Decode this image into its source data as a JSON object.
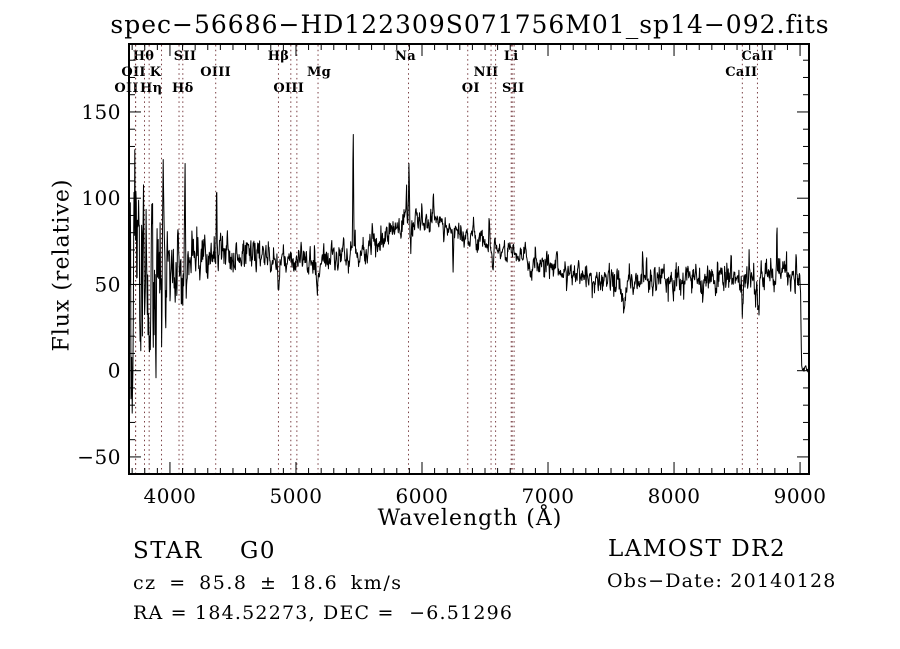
{
  "title": "spec−56686−HD122309S071756M01_sp14−092.fits",
  "annotations": {
    "class_label": "STAR",
    "subclass_label": "G0",
    "survey_label": "LAMOST DR2",
    "cz_label": "cz = 85.8 ± 18.6 km/s",
    "obsdate_label": "Obs−Date: 20140128",
    "radec_label": "RA = 184.52273, DEC =  −6.51296"
  },
  "chart_data": {
    "type": "line",
    "title": "spec−56686−HD122309S071756M01_sp14−092.fits",
    "xlabel": "Wavelength (Å)",
    "ylabel": "Flux (relative)",
    "xlim": [
      3675,
      9071
    ],
    "ylim": [
      -59.9,
      189.4
    ],
    "xticks": [
      4000,
      5000,
      6000,
      7000,
      8000,
      9000
    ],
    "yticks": [
      -50,
      0,
      50,
      100,
      150
    ],
    "x_minor_step": 100,
    "y_minor_step": 10,
    "grid": false,
    "background": "#ffffff",
    "frame_color": "#000000",
    "line_color": "#000000",
    "marker_color": "#7a4044",
    "seed": 20140128,
    "spectral_lines": [
      {
        "wl": 3727,
        "label": "OII",
        "row": 2,
        "dx": -2
      },
      {
        "wl": 3727.5,
        "label": "OII",
        "row": 3,
        "dx": -9
      },
      {
        "wl": 3798,
        "label": "Hθ",
        "row": 1,
        "dx": -1
      },
      {
        "wl": 3835,
        "label": "Hη",
        "row": 3,
        "dx": 2
      },
      {
        "wl": 3933,
        "label": "K",
        "row": 2,
        "dx": -6
      },
      {
        "wl": 4072,
        "label": "SII",
        "row": 1,
        "dx": 6
      },
      {
        "wl": 4102,
        "label": "Hδ",
        "row": 3,
        "dx": 0
      },
      {
        "wl": 4363,
        "label": "OIII",
        "row": 2,
        "dx": 0
      },
      {
        "wl": 4861,
        "label": "Hβ",
        "row": 1,
        "dx": 0
      },
      {
        "wl": 4959,
        "label": "OIII",
        "row": 3,
        "dx": -2
      },
      {
        "wl": 5007,
        "label": "",
        "row": 0,
        "dx": 0
      },
      {
        "wl": 5175,
        "label": "Mg",
        "row": 2,
        "dx": 1
      },
      {
        "wl": 5893,
        "label": "Na",
        "row": 1,
        "dx": -3
      },
      {
        "wl": 6363,
        "label": "OI",
        "row": 3,
        "dx": 3
      },
      {
        "wl": 6548,
        "label": "NII",
        "row": 2,
        "dx": -5
      },
      {
        "wl": 6584,
        "label": "",
        "row": 0,
        "dx": 0
      },
      {
        "wl": 6708,
        "label": "Li",
        "row": 1,
        "dx": 0
      },
      {
        "wl": 6716,
        "label": "SII",
        "row": 3,
        "dx": 1
      },
      {
        "wl": 6731,
        "label": "",
        "row": 0,
        "dx": 0
      },
      {
        "wl": 8542,
        "label": "CaII",
        "row": 2,
        "dx": -1
      },
      {
        "wl": 8662,
        "label": "CaII",
        "row": 1,
        "dx": 0
      }
    ],
    "continuum": [
      [
        3675,
        57
      ],
      [
        3720,
        58
      ],
      [
        3780,
        60
      ],
      [
        3850,
        58
      ],
      [
        3950,
        60
      ],
      [
        4050,
        62
      ],
      [
        4150,
        64
      ],
      [
        4250,
        66
      ],
      [
        4350,
        67
      ],
      [
        4450,
        69
      ],
      [
        4550,
        68
      ],
      [
        4650,
        68
      ],
      [
        4750,
        67
      ],
      [
        4820,
        65
      ],
      [
        4861,
        62
      ],
      [
        4920,
        65
      ],
      [
        5000,
        66
      ],
      [
        5100,
        65
      ],
      [
        5200,
        64
      ],
      [
        5300,
        66
      ],
      [
        5400,
        68
      ],
      [
        5500,
        70
      ],
      [
        5600,
        73
      ],
      [
        5700,
        77
      ],
      [
        5800,
        82
      ],
      [
        5900,
        86
      ],
      [
        6000,
        88
      ],
      [
        6100,
        87
      ],
      [
        6200,
        84
      ],
      [
        6300,
        80
      ],
      [
        6400,
        77
      ],
      [
        6500,
        74
      ],
      [
        6620,
        70
      ],
      [
        6700,
        68
      ],
      [
        6800,
        66
      ],
      [
        6900,
        63
      ],
      [
        7000,
        61
      ],
      [
        7100,
        58
      ],
      [
        7200,
        56
      ],
      [
        7300,
        54
      ],
      [
        7400,
        53
      ],
      [
        7500,
        52
      ],
      [
        7600,
        50
      ],
      [
        7700,
        52
      ],
      [
        7800,
        53
      ],
      [
        7900,
        52
      ],
      [
        8000,
        52
      ],
      [
        8100,
        53
      ],
      [
        8200,
        54
      ],
      [
        8300,
        55
      ],
      [
        8400,
        57
      ],
      [
        8500,
        55
      ],
      [
        8600,
        52
      ],
      [
        8700,
        52
      ],
      [
        8800,
        53
      ],
      [
        8900,
        55
      ],
      [
        8990,
        55
      ],
      [
        9003,
        48
      ],
      [
        9012,
        4
      ],
      [
        9025,
        2
      ],
      [
        9071,
        2
      ]
    ],
    "noise_sigma": [
      [
        3675,
        38
      ],
      [
        3700,
        38
      ],
      [
        3740,
        35
      ],
      [
        3780,
        31
      ],
      [
        3820,
        27
      ],
      [
        3860,
        24
      ],
      [
        3900,
        21
      ],
      [
        3950,
        17
      ],
      [
        4000,
        14
      ],
      [
        4050,
        12
      ],
      [
        4100,
        11
      ],
      [
        4150,
        10
      ],
      [
        4250,
        8
      ],
      [
        4350,
        7
      ],
      [
        4500,
        6
      ],
      [
        4700,
        5.5
      ],
      [
        5000,
        5
      ],
      [
        5500,
        4.5
      ],
      [
        6000,
        4
      ],
      [
        6300,
        3.5
      ],
      [
        6700,
        3.5
      ],
      [
        7000,
        4
      ],
      [
        7500,
        4.5
      ],
      [
        8000,
        5
      ],
      [
        8500,
        5.5
      ],
      [
        8900,
        6
      ],
      [
        8995,
        4
      ],
      [
        9010,
        1.2
      ],
      [
        9071,
        1.2
      ]
    ],
    "spikes": [
      {
        "wl": 3812,
        "amp": 55
      },
      {
        "wl": 3945,
        "amp": 48
      },
      {
        "wl": 4120,
        "amp": 50
      },
      {
        "wl": 4370,
        "amp": 42
      },
      {
        "wl": 5454,
        "amp": 62
      },
      {
        "wl": 5877,
        "amp": 26
      },
      {
        "wl": 5897,
        "amp": 38
      },
      {
        "wl": 6090,
        "amp": 13
      },
      {
        "wl": 6533,
        "amp": 15
      },
      {
        "wl": 7160,
        "amp": 11
      },
      {
        "wl": 7245,
        "amp": 10
      },
      {
        "wl": 7750,
        "amp": 12
      },
      {
        "wl": 8345,
        "amp": 13
      },
      {
        "wl": 8452,
        "amp": 15
      },
      {
        "wl": 8770,
        "amp": 15
      },
      {
        "wl": 8817,
        "amp": 26
      },
      {
        "wl": 8968,
        "amp": 11
      }
    ],
    "absorption_dips": [
      {
        "wl": 3760,
        "amp": -40,
        "w": 4
      },
      {
        "wl": 3890,
        "amp": -30,
        "w": 4
      },
      {
        "wl": 3934,
        "amp": -26,
        "w": 5
      },
      {
        "wl": 3969,
        "amp": -22,
        "w": 5
      },
      {
        "wl": 4300,
        "amp": -10,
        "w": 10
      },
      {
        "wl": 4861,
        "amp": -8,
        "w": 7
      },
      {
        "wl": 5172,
        "amp": -12,
        "w": 12
      },
      {
        "wl": 5910,
        "amp": -10,
        "w": 5
      },
      {
        "wl": 6247,
        "amp": -25,
        "w": 3
      },
      {
        "wl": 6563,
        "amp": -16,
        "w": 6
      },
      {
        "wl": 6870,
        "amp": -9,
        "w": 12
      },
      {
        "wl": 7190,
        "amp": -7,
        "w": 10
      },
      {
        "wl": 7600,
        "amp": -13,
        "w": 9
      },
      {
        "wl": 8230,
        "amp": -8,
        "w": 7
      },
      {
        "wl": 8337,
        "amp": -14,
        "w": 5
      },
      {
        "wl": 8545,
        "amp": -7,
        "w": 7
      },
      {
        "wl": 8665,
        "amp": -6,
        "w": 7
      }
    ]
  }
}
